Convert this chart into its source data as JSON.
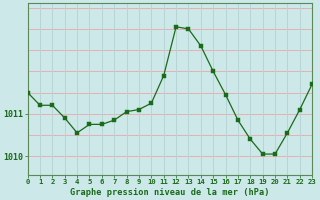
{
  "hours": [
    0,
    1,
    2,
    3,
    4,
    5,
    6,
    7,
    8,
    9,
    10,
    11,
    12,
    13,
    14,
    15,
    16,
    17,
    18,
    19,
    20,
    21,
    22,
    23
  ],
  "pressure": [
    1011.5,
    1011.2,
    1011.2,
    1010.9,
    1010.55,
    1010.75,
    1010.75,
    1010.85,
    1011.05,
    1011.1,
    1011.25,
    1011.9,
    1013.05,
    1013.0,
    1012.6,
    1012.0,
    1011.45,
    1010.85,
    1010.4,
    1010.05,
    1010.05,
    1010.55,
    1011.1,
    1011.7
  ],
  "line_color": "#1a6b1a",
  "marker_color": "#1a6b1a",
  "bg_color": "#cce8e8",
  "grid_h_color": "#e8b0b0",
  "grid_v_color": "#b8d4d4",
  "xlabel": "Graphe pression niveau de la mer (hPa)",
  "xlabel_color": "#1a6b1a",
  "ylim": [
    1009.55,
    1013.6
  ],
  "xlim": [
    0,
    23
  ],
  "xtick_labels": [
    "0",
    "1",
    "2",
    "3",
    "4",
    "5",
    "6",
    "7",
    "8",
    "9",
    "10",
    "11",
    "12",
    "13",
    "14",
    "15",
    "16",
    "17",
    "18",
    "19",
    "20",
    "21",
    "22",
    "23"
  ],
  "yticks": [
    1010,
    1011
  ],
  "tick_color": "#1a6b1a",
  "spine_color": "#5a8a5a"
}
